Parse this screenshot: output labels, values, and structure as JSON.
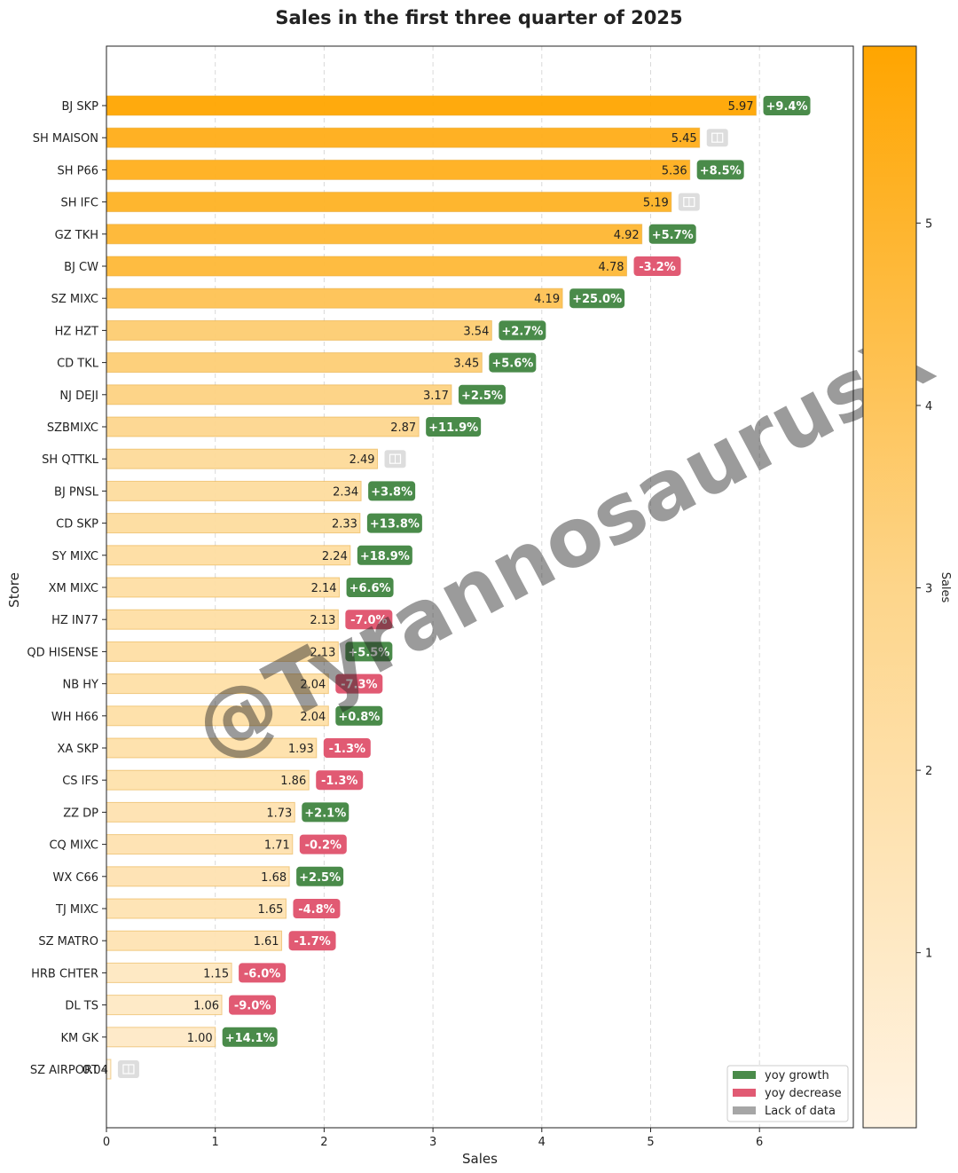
{
  "chart_data": {
    "type": "bar",
    "orientation": "horizontal",
    "title": "Sales in the first three quarter of 2025",
    "xlabel": "Sales",
    "ylabel": "Store",
    "xlim": [
      0,
      6.85
    ],
    "x_ticks": [
      "0",
      "1",
      "2",
      "3",
      "4",
      "5",
      "6"
    ],
    "grid": "vertical dashed",
    "colorbar": {
      "label": "Sales",
      "range": [
        0.04,
        5.97
      ],
      "ticks": [
        "1",
        "2",
        "3",
        "4",
        "5"
      ],
      "colors": {
        "low": "#fff3e2",
        "mid": "#fdd58a",
        "high": "#ffa500"
      }
    },
    "categories": [
      "BJ SKP",
      "SH MAISON",
      "SH P66",
      "SH IFC",
      "GZ TKH",
      "BJ CW",
      "SZ MIXC",
      "HZ HZT",
      "CD TKL",
      "NJ DEJI",
      "SZBMIXC",
      "SH QTTKL",
      "BJ PNSL",
      "CD SKP",
      "SY MIXC",
      "XM MIXC",
      "HZ IN77",
      "QD HISENSE",
      "NB HY",
      "WH H66",
      "XA SKP",
      "CS IFS",
      "ZZ DP",
      "CQ MIXC",
      "WX C66",
      "TJ MIXC",
      "SZ MATRO",
      "HRB CHTER",
      "DL TS",
      "KM GK",
      "SZ AIRPORT"
    ],
    "values": [
      5.97,
      5.45,
      5.36,
      5.19,
      4.92,
      4.78,
      4.19,
      3.54,
      3.45,
      3.17,
      2.87,
      2.49,
      2.34,
      2.33,
      2.24,
      2.14,
      2.13,
      2.13,
      2.04,
      2.04,
      1.93,
      1.86,
      1.73,
      1.71,
      1.68,
      1.65,
      1.61,
      1.15,
      1.06,
      1.0,
      0.04
    ],
    "value_labels": [
      "5.97",
      "5.45",
      "5.36",
      "5.19",
      "4.92",
      "4.78",
      "4.19",
      "3.54",
      "3.45",
      "3.17",
      "2.87",
      "2.49",
      "2.34",
      "2.33",
      "2.24",
      "2.14",
      "2.13",
      "2.13",
      "2.04",
      "2.04",
      "1.93",
      "1.86",
      "1.73",
      "1.71",
      "1.68",
      "1.65",
      "1.61",
      "1.15",
      "1.06",
      "1.00",
      "0.04"
    ],
    "yoy_labels": [
      "+9.4%",
      "",
      "+8.5%",
      "",
      "+5.7%",
      "-3.2%",
      "+25.0%",
      "+2.7%",
      "+5.6%",
      "+2.5%",
      "+11.9%",
      "",
      "+3.8%",
      "+13.8%",
      "+18.9%",
      "+6.6%",
      "-7.0%",
      "+5.5%",
      "-7.3%",
      "+0.8%",
      "-1.3%",
      "-1.3%",
      "+2.1%",
      "-0.2%",
      "+2.5%",
      "-4.8%",
      "-1.7%",
      "-6.0%",
      "-9.0%",
      "+14.1%",
      ""
    ],
    "yoy_status": [
      "growth",
      "nodata",
      "growth",
      "nodata",
      "growth",
      "decrease",
      "growth",
      "growth",
      "growth",
      "growth",
      "growth",
      "nodata",
      "growth",
      "growth",
      "growth",
      "growth",
      "decrease",
      "growth",
      "decrease",
      "growth",
      "decrease",
      "decrease",
      "growth",
      "decrease",
      "growth",
      "decrease",
      "decrease",
      "decrease",
      "decrease",
      "growth",
      "nodata"
    ],
    "legend": {
      "position": "lower-right",
      "items": [
        {
          "key": "growth",
          "label": "yoy growth",
          "color": "#4a8b4a"
        },
        {
          "key": "decrease",
          "label": "yoy decrease",
          "color": "#e15a73"
        },
        {
          "key": "nodata",
          "label": "Lack of data",
          "color": "#a6a6a6"
        }
      ]
    },
    "nodata_badge_color": "#dddddd",
    "watermark": "@TyrannosaurusX"
  }
}
